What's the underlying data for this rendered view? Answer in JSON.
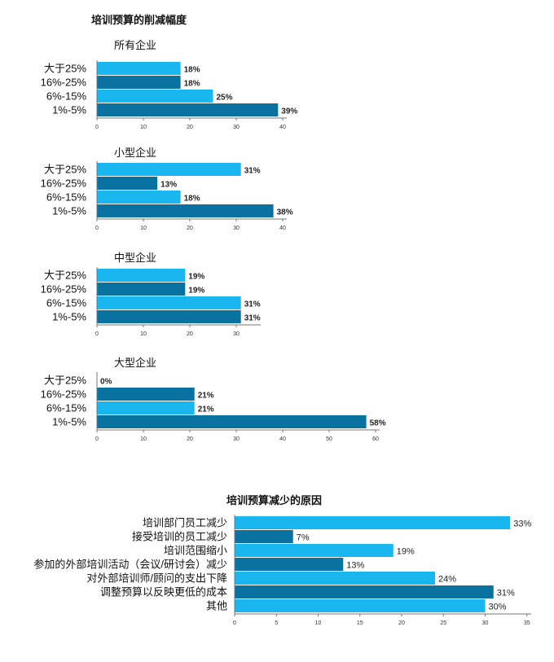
{
  "colors": {
    "light": "#19b6f0",
    "dark": "#0a72a0",
    "axis": "#777777"
  },
  "section1": {
    "title": "培训预算的削减幅度"
  },
  "section2": {
    "title": "培训预算减少的原因"
  },
  "chart_data": [
    {
      "type": "bar",
      "title": "所有企业",
      "categories": [
        "大于25%",
        "16%-25%",
        "6%-15%",
        "1%-5%"
      ],
      "values": [
        18,
        18,
        25,
        39
      ],
      "value_labels": [
        "18%",
        "18%",
        "25%",
        "39%"
      ],
      "xlim": [
        0,
        40
      ],
      "xticks": [
        0,
        10,
        20,
        30,
        40
      ],
      "grid": false
    },
    {
      "type": "bar",
      "title": "小型企业",
      "categories": [
        "大于25%",
        "16%-25%",
        "6%-15%",
        "1%-5%"
      ],
      "values": [
        31,
        13,
        18,
        38
      ],
      "value_labels": [
        "31%",
        "13%",
        "18%",
        "38%"
      ],
      "xlim": [
        0,
        40
      ],
      "xticks": [
        0,
        10,
        20,
        30,
        40
      ],
      "grid": false
    },
    {
      "type": "bar",
      "title": "中型企业",
      "categories": [
        "大于25%",
        "16%-25%",
        "6%-15%",
        "1%-5%"
      ],
      "values": [
        19,
        19,
        31,
        31
      ],
      "value_labels": [
        "19%",
        "19%",
        "31%",
        "31%"
      ],
      "xlim": [
        0,
        35
      ],
      "xticks": [
        0,
        10,
        20,
        30
      ],
      "grid": false
    },
    {
      "type": "bar",
      "title": "大型企业",
      "categories": [
        "大于25%",
        "16%-25%",
        "6%-15%",
        "1%-5%"
      ],
      "values": [
        0,
        21,
        21,
        58
      ],
      "value_labels": [
        "0%",
        "21%",
        "21%",
        "58%"
      ],
      "xlim": [
        0,
        60
      ],
      "xticks": [
        0,
        10,
        20,
        30,
        40,
        50,
        60
      ],
      "grid": false
    },
    {
      "type": "bar",
      "title": "",
      "categories": [
        "培训部门员工减少",
        "接受培训的员工减少",
        "培训范围缩小",
        "参加的外部培训活动（会议/研讨会）减少",
        "对外部培训师/顾问的支出下降",
        "调整预算以反映更低的成本",
        "其他"
      ],
      "values": [
        33,
        7,
        19,
        13,
        24,
        31,
        30
      ],
      "value_labels": [
        "33%",
        "7%",
        "19%",
        "13%",
        "24%",
        "31%",
        "30%"
      ],
      "xlim": [
        0,
        35
      ],
      "xticks": [
        0,
        5,
        10,
        15,
        20,
        25,
        30,
        35
      ],
      "grid": false
    }
  ]
}
